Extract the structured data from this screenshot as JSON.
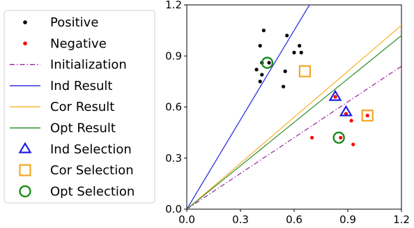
{
  "chart_data": {
    "type": "scatter",
    "title": "",
    "xlabel": "",
    "ylabel": "",
    "xlim": [
      0.0,
      1.2
    ],
    "ylim": [
      0.0,
      1.2
    ],
    "xticks": [
      "0.0",
      "0.3",
      "0.6",
      "0.9",
      "1.2"
    ],
    "yticks": [
      "0.0",
      "0.3",
      "0.6",
      "0.9",
      "1.2"
    ],
    "grid": false,
    "legend_position": "left, outside plot",
    "legend": [
      {
        "label": "Positive",
        "kind": "dot",
        "color": "#000000"
      },
      {
        "label": "Negative",
        "kind": "dot",
        "color": "#ff0000"
      },
      {
        "label": "Initialization",
        "kind": "dashdot",
        "color": "#9a1fa0"
      },
      {
        "label": "Ind Result",
        "kind": "line",
        "color": "#1f1fe0"
      },
      {
        "label": "Cor Result",
        "kind": "line",
        "color": "#f5b020"
      },
      {
        "label": "Opt Result",
        "kind": "line",
        "color": "#2e8b2e"
      },
      {
        "label": "Ind Selection",
        "kind": "triangle",
        "color": "#1f1fe0"
      },
      {
        "label": "Cor Selection",
        "kind": "square",
        "color": "#f5a623"
      },
      {
        "label": "Opt Selection",
        "kind": "circle",
        "color": "#1a8a1a"
      }
    ],
    "series": [
      {
        "name": "Positive",
        "color": "#000000",
        "points": [
          [
            0.43,
            1.05
          ],
          [
            0.56,
            1.02
          ],
          [
            0.41,
            0.96
          ],
          [
            0.63,
            0.96
          ],
          [
            0.6,
            0.92
          ],
          [
            0.64,
            0.92
          ],
          [
            0.42,
            0.86
          ],
          [
            0.46,
            0.86
          ],
          [
            0.39,
            0.82
          ],
          [
            0.55,
            0.81
          ],
          [
            0.42,
            0.79
          ],
          [
            0.41,
            0.75
          ],
          [
            0.54,
            0.72
          ]
        ]
      },
      {
        "name": "Negative",
        "color": "#ff0000",
        "points": [
          [
            0.83,
            0.66
          ],
          [
            0.89,
            0.56
          ],
          [
            0.92,
            0.52
          ],
          [
            1.01,
            0.55
          ],
          [
            0.7,
            0.42
          ],
          [
            0.86,
            0.42
          ],
          [
            0.93,
            0.38
          ]
        ]
      }
    ],
    "lines": [
      {
        "name": "Initialization",
        "slope": 0.7,
        "color": "#9a1fa0",
        "style": "dashdot"
      },
      {
        "name": "Ind Result",
        "slope": 1.75,
        "color": "#1f1fe0",
        "style": "solid"
      },
      {
        "name": "Cor Result",
        "slope": 0.9,
        "color": "#f5b020",
        "style": "solid"
      },
      {
        "name": "Opt Result",
        "slope": 0.85,
        "color": "#2e8b2e",
        "style": "solid"
      }
    ],
    "selections": [
      {
        "name": "Ind Selection",
        "marker": "triangle",
        "color": "#1f1fe0",
        "points": [
          [
            0.83,
            0.66
          ],
          [
            0.89,
            0.57
          ]
        ]
      },
      {
        "name": "Cor Selection",
        "marker": "square",
        "color": "#f5a623",
        "points": [
          [
            0.66,
            0.81
          ],
          [
            1.01,
            0.55
          ]
        ]
      },
      {
        "name": "Opt Selection",
        "marker": "circle",
        "color": "#1a8a1a",
        "points": [
          [
            0.45,
            0.86
          ],
          [
            0.85,
            0.42
          ]
        ]
      }
    ]
  }
}
